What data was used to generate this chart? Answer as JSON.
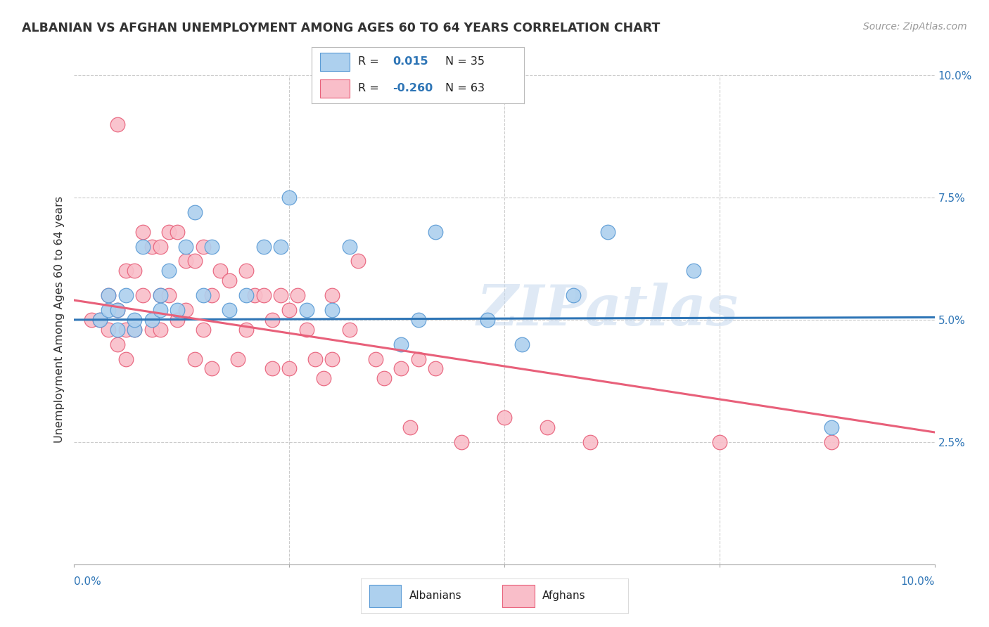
{
  "title": "ALBANIAN VS AFGHAN UNEMPLOYMENT AMONG AGES 60 TO 64 YEARS CORRELATION CHART",
  "source": "Source: ZipAtlas.com",
  "ylabel": "Unemployment Among Ages 60 to 64 years",
  "xlim": [
    0.0,
    0.1
  ],
  "ylim": [
    0.0,
    0.1
  ],
  "albanian_R": 0.015,
  "albanian_N": 35,
  "afghan_R": -0.26,
  "afghan_N": 63,
  "albanian_color": "#ADD0EE",
  "afghan_color": "#F9BEC9",
  "albanian_edge_color": "#5B9BD5",
  "afghan_edge_color": "#E8607A",
  "albanian_line_color": "#2E75B6",
  "afghan_line_color": "#E8607A",
  "watermark": "ZIPatlas",
  "alb_line_start_y": 0.05,
  "alb_line_end_y": 0.0505,
  "afg_line_start_y": 0.054,
  "afg_line_end_y": 0.027,
  "albanian_x": [
    0.003,
    0.004,
    0.004,
    0.005,
    0.005,
    0.006,
    0.007,
    0.007,
    0.008,
    0.009,
    0.01,
    0.01,
    0.011,
    0.012,
    0.013,
    0.014,
    0.015,
    0.016,
    0.018,
    0.02,
    0.022,
    0.024,
    0.025,
    0.027,
    0.03,
    0.032,
    0.038,
    0.04,
    0.042,
    0.048,
    0.052,
    0.058,
    0.062,
    0.072,
    0.088
  ],
  "albanian_y": [
    0.05,
    0.052,
    0.055,
    0.048,
    0.052,
    0.055,
    0.048,
    0.05,
    0.065,
    0.05,
    0.052,
    0.055,
    0.06,
    0.052,
    0.065,
    0.072,
    0.055,
    0.065,
    0.052,
    0.055,
    0.065,
    0.065,
    0.075,
    0.052,
    0.052,
    0.065,
    0.045,
    0.05,
    0.068,
    0.05,
    0.045,
    0.055,
    0.068,
    0.06,
    0.028
  ],
  "afghan_x": [
    0.002,
    0.003,
    0.004,
    0.004,
    0.005,
    0.005,
    0.005,
    0.006,
    0.006,
    0.006,
    0.007,
    0.007,
    0.008,
    0.008,
    0.009,
    0.009,
    0.01,
    0.01,
    0.01,
    0.011,
    0.011,
    0.012,
    0.012,
    0.013,
    0.013,
    0.014,
    0.014,
    0.015,
    0.015,
    0.016,
    0.016,
    0.017,
    0.018,
    0.019,
    0.02,
    0.02,
    0.021,
    0.022,
    0.023,
    0.023,
    0.024,
    0.025,
    0.025,
    0.026,
    0.027,
    0.028,
    0.029,
    0.03,
    0.03,
    0.032,
    0.033,
    0.035,
    0.036,
    0.038,
    0.039,
    0.04,
    0.042,
    0.045,
    0.05,
    0.055,
    0.06,
    0.075,
    0.088
  ],
  "afghan_y": [
    0.05,
    0.05,
    0.055,
    0.048,
    0.09,
    0.052,
    0.045,
    0.06,
    0.048,
    0.042,
    0.06,
    0.048,
    0.068,
    0.055,
    0.065,
    0.048,
    0.065,
    0.055,
    0.048,
    0.068,
    0.055,
    0.068,
    0.05,
    0.062,
    0.052,
    0.062,
    0.042,
    0.065,
    0.048,
    0.055,
    0.04,
    0.06,
    0.058,
    0.042,
    0.06,
    0.048,
    0.055,
    0.055,
    0.05,
    0.04,
    0.055,
    0.052,
    0.04,
    0.055,
    0.048,
    0.042,
    0.038,
    0.055,
    0.042,
    0.048,
    0.062,
    0.042,
    0.038,
    0.04,
    0.028,
    0.042,
    0.04,
    0.025,
    0.03,
    0.028,
    0.025,
    0.025,
    0.025
  ]
}
